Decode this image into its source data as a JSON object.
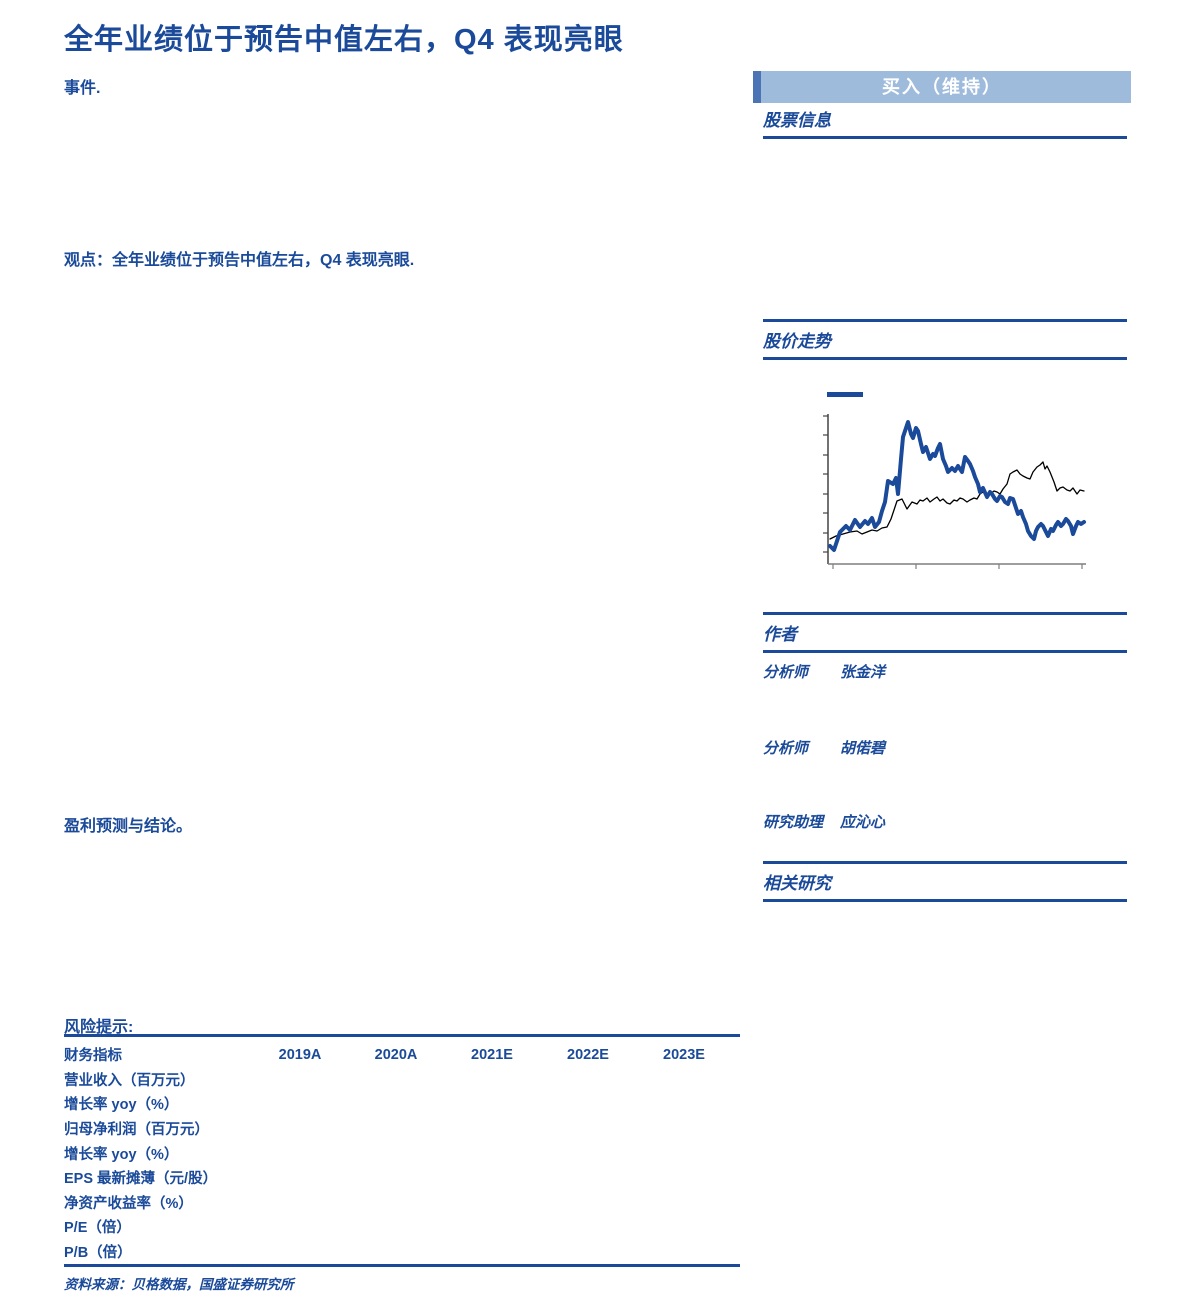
{
  "report": {
    "title": "全年业绩位于预告中值左右，Q4 表现亮眼",
    "event_label": "事件.",
    "viewpoint_label": "观点：全年业绩位于预告中值左右，Q4 表现亮眼.",
    "forecast_label": "盈利预测与结论。",
    "risk_label": "风险提示:"
  },
  "sidebar": {
    "rating": "买入（维持）",
    "stock_info_title": "股票信息",
    "price_trend_title": "股价走势",
    "authors_title": "作者",
    "related_title": "相关研究",
    "authors": [
      {
        "role": "分析师",
        "name": "张金洋"
      },
      {
        "role": "分析师",
        "name": "胡偌碧"
      },
      {
        "role": "研究助理",
        "name": "应沁心"
      }
    ]
  },
  "fin_table": {
    "headers": [
      "财务指标",
      "2019A",
      "2020A",
      "2021E",
      "2022E",
      "2023E"
    ],
    "rows": [
      {
        "label": "营业收入（百万元）",
        "values": [
          "",
          "",
          "",
          "",
          ""
        ]
      },
      {
        "label": "增长率 yoy（%）",
        "values": [
          "",
          "",
          "",
          "",
          ""
        ]
      },
      {
        "label": "归母净利润（百万元）",
        "values": [
          "",
          "",
          "",
          "",
          ""
        ]
      },
      {
        "label": "增长率 yoy（%）",
        "values": [
          "",
          "",
          "",
          "",
          ""
        ]
      },
      {
        "label": "EPS 最新摊薄（元/股）",
        "values": [
          "",
          "",
          "",
          "",
          ""
        ]
      },
      {
        "label": "净资产收益率（%）",
        "values": [
          "",
          "",
          "",
          "",
          ""
        ]
      },
      {
        "label": "P/E（倍）",
        "values": [
          "",
          "",
          "",
          "",
          ""
        ]
      },
      {
        "label": "P/B（倍）",
        "values": [
          "",
          "",
          "",
          "",
          ""
        ]
      }
    ],
    "source": "资料来源：贝格数据，国盛证券研究所"
  },
  "chart_data": {
    "type": "line",
    "title": "股价走势",
    "axis_labels_visible": false,
    "legend": {
      "marker_color": "#1a4a99",
      "label": ""
    },
    "plot_size": [
      258,
      150
    ],
    "x_tick_positions": [
      5,
      88,
      171,
      254
    ],
    "y_tick_positions": [
      2,
      21,
      41,
      60,
      80,
      99,
      119,
      138
    ],
    "series": [
      {
        "id": "benchmark-index-line",
        "color": "#000000",
        "stroke_width": 1.3,
        "points": [
          [
            2,
            125
          ],
          [
            8,
            122
          ],
          [
            15,
            120
          ],
          [
            22,
            118
          ],
          [
            29,
            117
          ],
          [
            34,
            120
          ],
          [
            39,
            118
          ],
          [
            44,
            116
          ],
          [
            49,
            117
          ],
          [
            54,
            114
          ],
          [
            59,
            113
          ],
          [
            63,
            105
          ],
          [
            69,
            87
          ],
          [
            74,
            85
          ],
          [
            79,
            95
          ],
          [
            84,
            88
          ],
          [
            89,
            90
          ],
          [
            92,
            86
          ],
          [
            95,
            87
          ],
          [
            99,
            84
          ],
          [
            102,
            88
          ],
          [
            106,
            85
          ],
          [
            109,
            83
          ],
          [
            112,
            87
          ],
          [
            115,
            85
          ],
          [
            119,
            89
          ],
          [
            122,
            90
          ],
          [
            126,
            86
          ],
          [
            129,
            87
          ],
          [
            132,
            84
          ],
          [
            135,
            85
          ],
          [
            139,
            88
          ],
          [
            142,
            86
          ],
          [
            146,
            84
          ],
          [
            149,
            85
          ],
          [
            152,
            80
          ],
          [
            155,
            78
          ],
          [
            159,
            82
          ],
          [
            162,
            80
          ],
          [
            166,
            77
          ],
          [
            169,
            78
          ],
          [
            172,
            80
          ],
          [
            175,
            75
          ],
          [
            179,
            70
          ],
          [
            182,
            60
          ],
          [
            185,
            58
          ],
          [
            189,
            56
          ],
          [
            192,
            60
          ],
          [
            195,
            62
          ],
          [
            199,
            64
          ],
          [
            202,
            65
          ],
          [
            205,
            58
          ],
          [
            209,
            53
          ],
          [
            212,
            51
          ],
          [
            215,
            48
          ],
          [
            217,
            55
          ],
          [
            219,
            52
          ],
          [
            222,
            58
          ],
          [
            226,
            68
          ],
          [
            229,
            77
          ],
          [
            232,
            74
          ],
          [
            235,
            73
          ],
          [
            239,
            76
          ],
          [
            242,
            77
          ],
          [
            245,
            74
          ],
          [
            249,
            80
          ],
          [
            252,
            76
          ],
          [
            256,
            77
          ]
        ]
      },
      {
        "id": "stock-price-line",
        "color": "#1a4a99",
        "stroke_width": 4,
        "points": [
          [
            2,
            132
          ],
          [
            6,
            136
          ],
          [
            12,
            118
          ],
          [
            18,
            112
          ],
          [
            22,
            116
          ],
          [
            27,
            106
          ],
          [
            32,
            113
          ],
          [
            37,
            107
          ],
          [
            40,
            110
          ],
          [
            44,
            104
          ],
          [
            47,
            113
          ],
          [
            51,
            108
          ],
          [
            54,
            97
          ],
          [
            57,
            88
          ],
          [
            60,
            67
          ],
          [
            65,
            70
          ],
          [
            68,
            64
          ],
          [
            70,
            80
          ],
          [
            73,
            45
          ],
          [
            75,
            23
          ],
          [
            78,
            14
          ],
          [
            80,
            8
          ],
          [
            83,
            20
          ],
          [
            85,
            24
          ],
          [
            88,
            14
          ],
          [
            90,
            17
          ],
          [
            93,
            30
          ],
          [
            95,
            38
          ],
          [
            98,
            33
          ],
          [
            102,
            45
          ],
          [
            105,
            40
          ],
          [
            107,
            42
          ],
          [
            110,
            34
          ],
          [
            112,
            30
          ],
          [
            115,
            45
          ],
          [
            118,
            52
          ],
          [
            120,
            58
          ],
          [
            124,
            54
          ],
          [
            127,
            57
          ],
          [
            130,
            52
          ],
          [
            134,
            58
          ],
          [
            137,
            43
          ],
          [
            140,
            47
          ],
          [
            142,
            50
          ],
          [
            145,
            57
          ],
          [
            147,
            63
          ],
          [
            150,
            70
          ],
          [
            152,
            78
          ],
          [
            155,
            74
          ],
          [
            159,
            83
          ],
          [
            162,
            78
          ],
          [
            164,
            80
          ],
          [
            167,
            85
          ],
          [
            169,
            87
          ],
          [
            172,
            82
          ],
          [
            174,
            83
          ],
          [
            177,
            88
          ],
          [
            180,
            90
          ],
          [
            182,
            84
          ],
          [
            185,
            85
          ],
          [
            188,
            94
          ],
          [
            190,
            100
          ],
          [
            193,
            97
          ],
          [
            195,
            103
          ],
          [
            198,
            110
          ],
          [
            200,
            117
          ],
          [
            203,
            122
          ],
          [
            206,
            125
          ],
          [
            208,
            117
          ],
          [
            210,
            113
          ],
          [
            213,
            110
          ],
          [
            215,
            112
          ],
          [
            218,
            118
          ],
          [
            220,
            122
          ],
          [
            223,
            115
          ],
          [
            225,
            117
          ],
          [
            228,
            111
          ],
          [
            230,
            108
          ],
          [
            233,
            112
          ],
          [
            235,
            110
          ],
          [
            238,
            105
          ],
          [
            240,
            107
          ],
          [
            243,
            112
          ],
          [
            245,
            120
          ],
          [
            248,
            112
          ],
          [
            250,
            108
          ],
          [
            253,
            110
          ],
          [
            256,
            108
          ]
        ]
      }
    ]
  },
  "colors": {
    "accent_blue": "#1a4a99",
    "banner_light_blue": "#9fbbdc",
    "banner_cap_blue": "#4a74b4",
    "axis_gray": "#7f7f7f"
  }
}
